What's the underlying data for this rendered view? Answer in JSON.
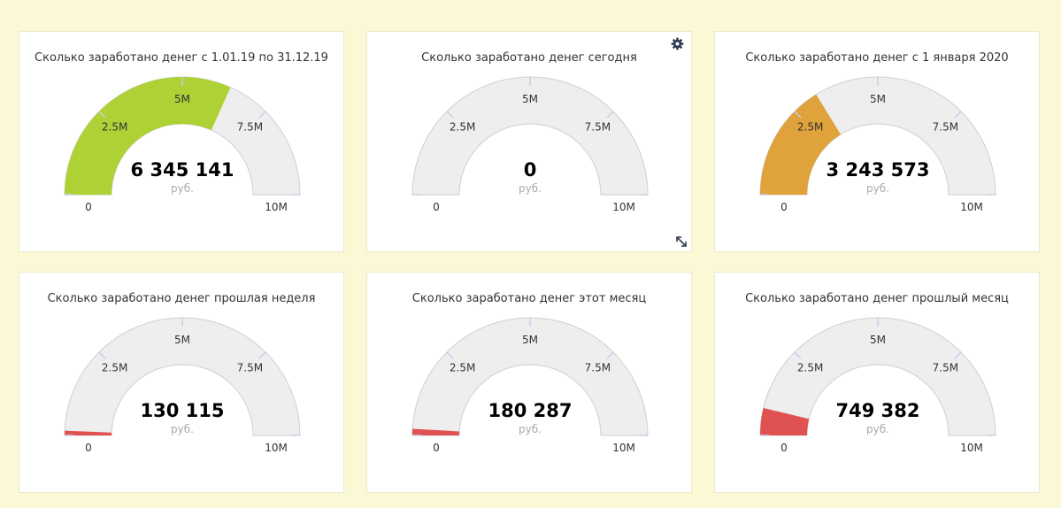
{
  "colors": {
    "track": "#eeeeee",
    "tick": "#c6d0e8"
  },
  "chart_data": [
    {
      "type": "gauge",
      "title": "Сколько заработано денег с 1.01.19 по 31.12.19",
      "value": 6345141,
      "value_label": "6 345 141",
      "unit": "руб.",
      "min": 0,
      "max": 10000000,
      "min_label": "0",
      "max_label": "10M",
      "tick_labels": [
        "2.5M",
        "5M",
        "7.5M"
      ],
      "color": "#aed136"
    },
    {
      "type": "gauge",
      "title": "Сколько заработано денег сегодня",
      "value": 0,
      "value_label": "0",
      "unit": "руб.",
      "min": 0,
      "max": 10000000,
      "min_label": "0",
      "max_label": "10M",
      "tick_labels": [
        "2.5M",
        "5M",
        "7.5M"
      ],
      "color": "#aed136"
    },
    {
      "type": "gauge",
      "title": "Сколько заработано денег с 1 января 2020",
      "value": 3243573,
      "value_label": "3 243 573",
      "unit": "руб.",
      "min": 0,
      "max": 10000000,
      "min_label": "0",
      "max_label": "10M",
      "tick_labels": [
        "2.5M",
        "5M",
        "7.5M"
      ],
      "color": "#e0a23a"
    },
    {
      "type": "gauge",
      "title": "Сколько заработано денег прошлая неделя",
      "value": 130115,
      "value_label": "130 115",
      "unit": "руб.",
      "min": 0,
      "max": 10000000,
      "min_label": "0",
      "max_label": "10M",
      "tick_labels": [
        "2.5M",
        "5M",
        "7.5M"
      ],
      "color": "#e05252"
    },
    {
      "type": "gauge",
      "title": "Сколько заработано денег этот месяц",
      "value": 180287,
      "value_label": "180 287",
      "unit": "руб.",
      "min": 0,
      "max": 10000000,
      "min_label": "0",
      "max_label": "10M",
      "tick_labels": [
        "2.5M",
        "5M",
        "7.5M"
      ],
      "color": "#e05252"
    },
    {
      "type": "gauge",
      "title": "Сколько заработано денег прошлый месяц",
      "value": 749382,
      "value_label": "749 382",
      "unit": "руб.",
      "min": 0,
      "max": 10000000,
      "min_label": "0",
      "max_label": "10M",
      "tick_labels": [
        "2.5M",
        "5M",
        "7.5M"
      ],
      "color": "#e05252"
    }
  ]
}
